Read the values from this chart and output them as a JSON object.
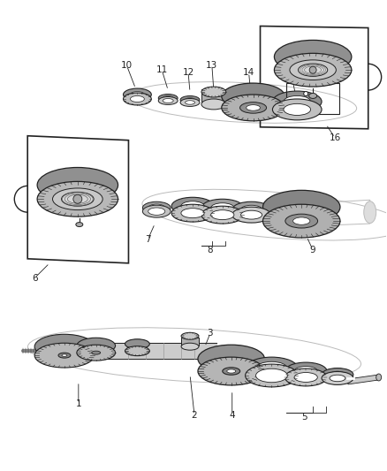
{
  "background_color": "#ffffff",
  "line_color": "#222222",
  "fig_width": 4.38,
  "fig_height": 5.33,
  "dpi": 100,
  "gear_color": "#b0b0b0",
  "ring_color": "#c8c8c8",
  "shaft_color": "#d0d0d0",
  "dark_color": "#808080",
  "label_fontsize": 7.5
}
